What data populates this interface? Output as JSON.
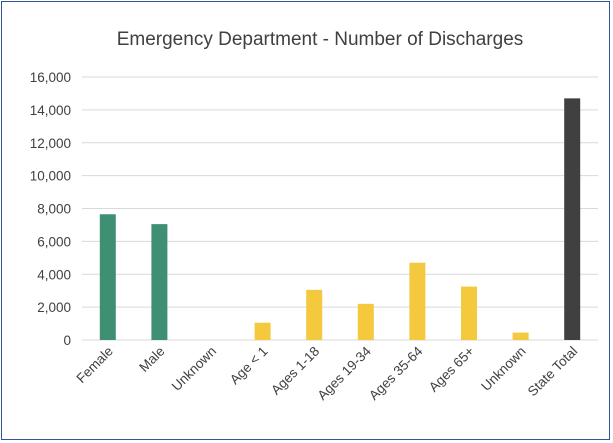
{
  "chart_data": {
    "type": "bar",
    "title": "Emergency Department - Number of Discharges",
    "xlabel": "",
    "ylabel": "",
    "ylim": [
      0,
      16000
    ],
    "yticks": [
      0,
      2000,
      4000,
      6000,
      8000,
      10000,
      12000,
      14000,
      16000
    ],
    "ytick_labels": [
      "0",
      "2,000",
      "4,000",
      "6,000",
      "8,000",
      "10,000",
      "12,000",
      "14,000",
      "16,000"
    ],
    "grid": true,
    "legend": "none",
    "categories": [
      "Female",
      "Male",
      "Unknown",
      "Age < 1",
      "Ages 1-18",
      "Ages 19-34",
      "Ages 35-64",
      "Ages 65+",
      "Unknown",
      "State Total"
    ],
    "values": [
      7650,
      7050,
      0,
      1050,
      3050,
      2200,
      4700,
      3250,
      450,
      14700
    ],
    "colors": [
      "#3f8f72",
      "#3f8f72",
      "#f4c93e",
      "#f4c93e",
      "#f4c93e",
      "#f4c93e",
      "#f4c93e",
      "#f4c93e",
      "#f4c93e",
      "#404040"
    ]
  }
}
